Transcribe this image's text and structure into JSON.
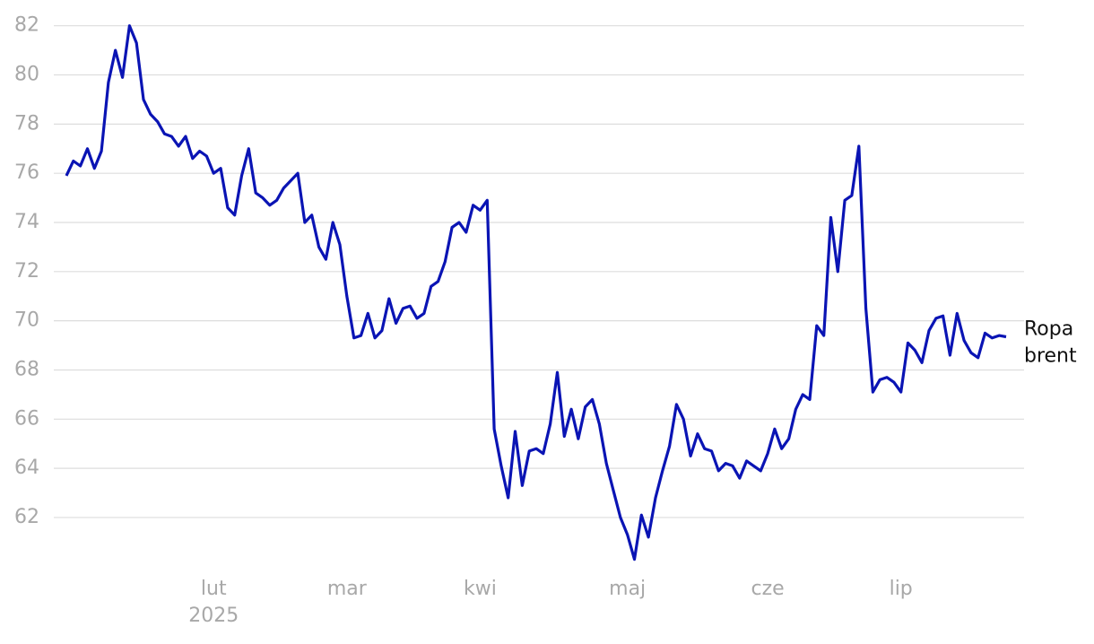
{
  "chart_data": {
    "type": "line",
    "categories": [
      null,
      null,
      null,
      null,
      null,
      null,
      null,
      null,
      null,
      null,
      null,
      null,
      null,
      null,
      null,
      null,
      null,
      null,
      null,
      null,
      null,
      "lut 2025",
      null,
      null,
      null,
      null,
      null,
      null,
      null,
      null,
      null,
      null,
      null,
      null,
      null,
      null,
      null,
      null,
      null,
      null,
      "mar",
      null,
      null,
      null,
      null,
      null,
      null,
      null,
      null,
      null,
      null,
      null,
      null,
      null,
      null,
      null,
      null,
      null,
      null,
      "kwi",
      null,
      null,
      null,
      null,
      null,
      null,
      null,
      null,
      null,
      null,
      null,
      null,
      null,
      null,
      null,
      null,
      null,
      null,
      null,
      null,
      "maj",
      null,
      null,
      null,
      null,
      null,
      null,
      null,
      null,
      null,
      null,
      null,
      null,
      null,
      null,
      null,
      null,
      null,
      null,
      null,
      "cze",
      null,
      null,
      null,
      null,
      null,
      null,
      null,
      null,
      null,
      null,
      null,
      null,
      null,
      null,
      null,
      null,
      null,
      null,
      "lip",
      null,
      null,
      null,
      null,
      null,
      null,
      null,
      null,
      null,
      null,
      null,
      null,
      null,
      null,
      null
    ],
    "series": [
      {
        "name": "Ropa brent",
        "color": "#0a14b4",
        "values": [
          75.9,
          76.5,
          76.3,
          77.0,
          76.2,
          76.9,
          79.7,
          81.0,
          79.9,
          82.0,
          81.3,
          79.0,
          78.4,
          78.1,
          77.6,
          77.5,
          77.1,
          77.5,
          76.6,
          76.9,
          76.7,
          76.0,
          76.2,
          74.6,
          74.3,
          75.9,
          77.0,
          75.2,
          75.0,
          74.7,
          74.9,
          75.4,
          75.7,
          76.0,
          74.0,
          74.3,
          73.0,
          72.5,
          74.0,
          73.1,
          71.0,
          69.3,
          69.4,
          70.3,
          69.3,
          69.6,
          70.9,
          69.9,
          70.5,
          70.6,
          70.1,
          70.3,
          71.4,
          71.6,
          72.4,
          73.8,
          74.0,
          73.6,
          74.7,
          74.5,
          74.9,
          65.6,
          64.1,
          62.8,
          65.5,
          63.3,
          64.7,
          64.8,
          64.6,
          65.8,
          67.9,
          65.3,
          66.4,
          65.2,
          66.5,
          66.8,
          65.8,
          64.2,
          63.1,
          62.0,
          61.3,
          60.3,
          62.1,
          61.2,
          62.8,
          63.9,
          64.9,
          66.6,
          66.0,
          64.5,
          65.4,
          64.8,
          64.7,
          63.9,
          64.2,
          64.1,
          63.6,
          64.3,
          64.1,
          63.9,
          64.6,
          65.6,
          64.8,
          65.2,
          66.4,
          67.0,
          66.8,
          69.8,
          69.4,
          74.2,
          72.0,
          74.9,
          75.1,
          77.1,
          70.5,
          67.1,
          67.6,
          67.7,
          67.5,
          67.1,
          69.1,
          68.8,
          68.3,
          69.6,
          70.1,
          70.2,
          68.6,
          70.3,
          69.2,
          68.7,
          68.5,
          69.5,
          69.3,
          69.4,
          69.35
        ]
      }
    ],
    "ylim": [
      59.7,
      82.5
    ],
    "yticks": [
      62,
      64,
      66,
      68,
      70,
      72,
      74,
      76,
      78,
      80,
      82
    ],
    "grid": true
  }
}
